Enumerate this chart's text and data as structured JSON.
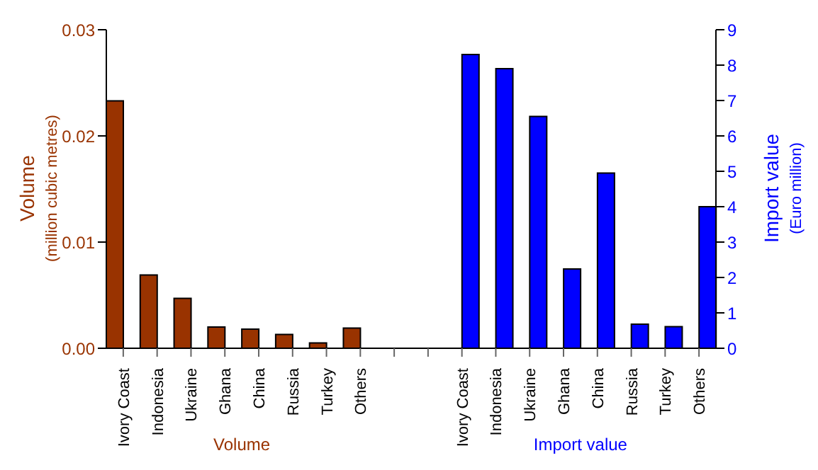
{
  "chart_data": {
    "type": "bar",
    "categories": [
      "Ivory Coast",
      "Indonesia",
      "Ukraine",
      "Ghana",
      "China",
      "Russia",
      "Turkey",
      "Others",
      null,
      null,
      "Ivory Coast",
      "Indonesia",
      "Ukraine",
      "Ghana",
      "China",
      "Russia",
      "Turkey",
      "Others"
    ],
    "series": [
      {
        "name": "Volume",
        "color": "#993300",
        "values": [
          0.0233,
          0.0069,
          0.0047,
          0.002,
          0.0018,
          0.0013,
          0.0005,
          0.0019,
          null,
          null,
          null,
          null,
          null,
          null,
          null,
          null,
          null,
          null
        ]
      },
      {
        "name": "Import value",
        "color": "#0000ff",
        "axis": "y2",
        "values": [
          null,
          null,
          null,
          null,
          null,
          null,
          null,
          null,
          null,
          null,
          8.3,
          7.9,
          6.55,
          2.24,
          4.95,
          0.68,
          0.61,
          4.0
        ]
      }
    ],
    "ylabel": "Volume\n(million cubic metres)",
    "y2label": "Import value\n(Euro million)",
    "ylim": [
      0,
      0.03
    ],
    "yticks": [
      {
        "value": 0,
        "label": "0.00"
      },
      {
        "value": 0.01,
        "label": "0.01"
      },
      {
        "value": 0.02,
        "label": "0.02"
      },
      {
        "value": 0.03,
        "label": "0.03"
      }
    ],
    "y2lim": [
      0,
      9
    ],
    "y2ticks": [
      0,
      1,
      2,
      3,
      4,
      5,
      6,
      7,
      8,
      9
    ]
  }
}
